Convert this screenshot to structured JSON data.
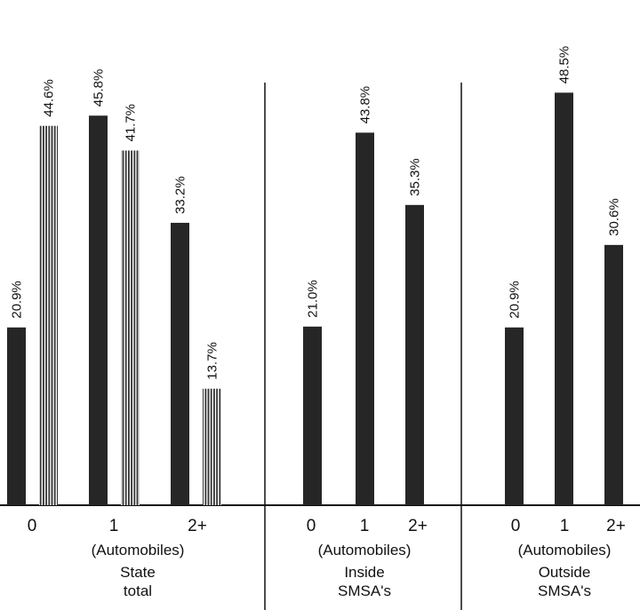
{
  "chart_data": {
    "type": "bar",
    "ylim": [
      0,
      50
    ],
    "grid": false,
    "colors": {
      "solid": "#262626",
      "striped": "#333333"
    },
    "groups": [
      {
        "title": [
          "State",
          "total"
        ],
        "axis_label": "(Automobiles)",
        "categories": [
          "0",
          "1",
          "2+"
        ],
        "series": [
          {
            "style": "solid",
            "values": [
              20.9,
              45.8,
              33.2
            ],
            "labels": [
              "20.9%",
              "45.8%",
              "33.2%"
            ]
          },
          {
            "style": "striped",
            "values": [
              44.6,
              41.7,
              13.7
            ],
            "labels": [
              "44.6%",
              "41.7%",
              "13.7%"
            ]
          }
        ]
      },
      {
        "title": [
          "Inside",
          "SMSA's"
        ],
        "axis_label": "(Automobiles)",
        "categories": [
          "0",
          "1",
          "2+"
        ],
        "series": [
          {
            "style": "solid",
            "values": [
              21.0,
              43.8,
              35.3
            ],
            "labels": [
              "21.0%",
              "43.8%",
              "35.3%"
            ]
          }
        ]
      },
      {
        "title": [
          "Outside",
          "SMSA's"
        ],
        "axis_label": "(Automobiles)",
        "categories": [
          "0",
          "1",
          "2+"
        ],
        "series": [
          {
            "style": "solid",
            "values": [
              20.9,
              48.5,
              30.6
            ],
            "labels": [
              "20.9%",
              "48.5%",
              "30.6%"
            ]
          }
        ]
      }
    ]
  }
}
